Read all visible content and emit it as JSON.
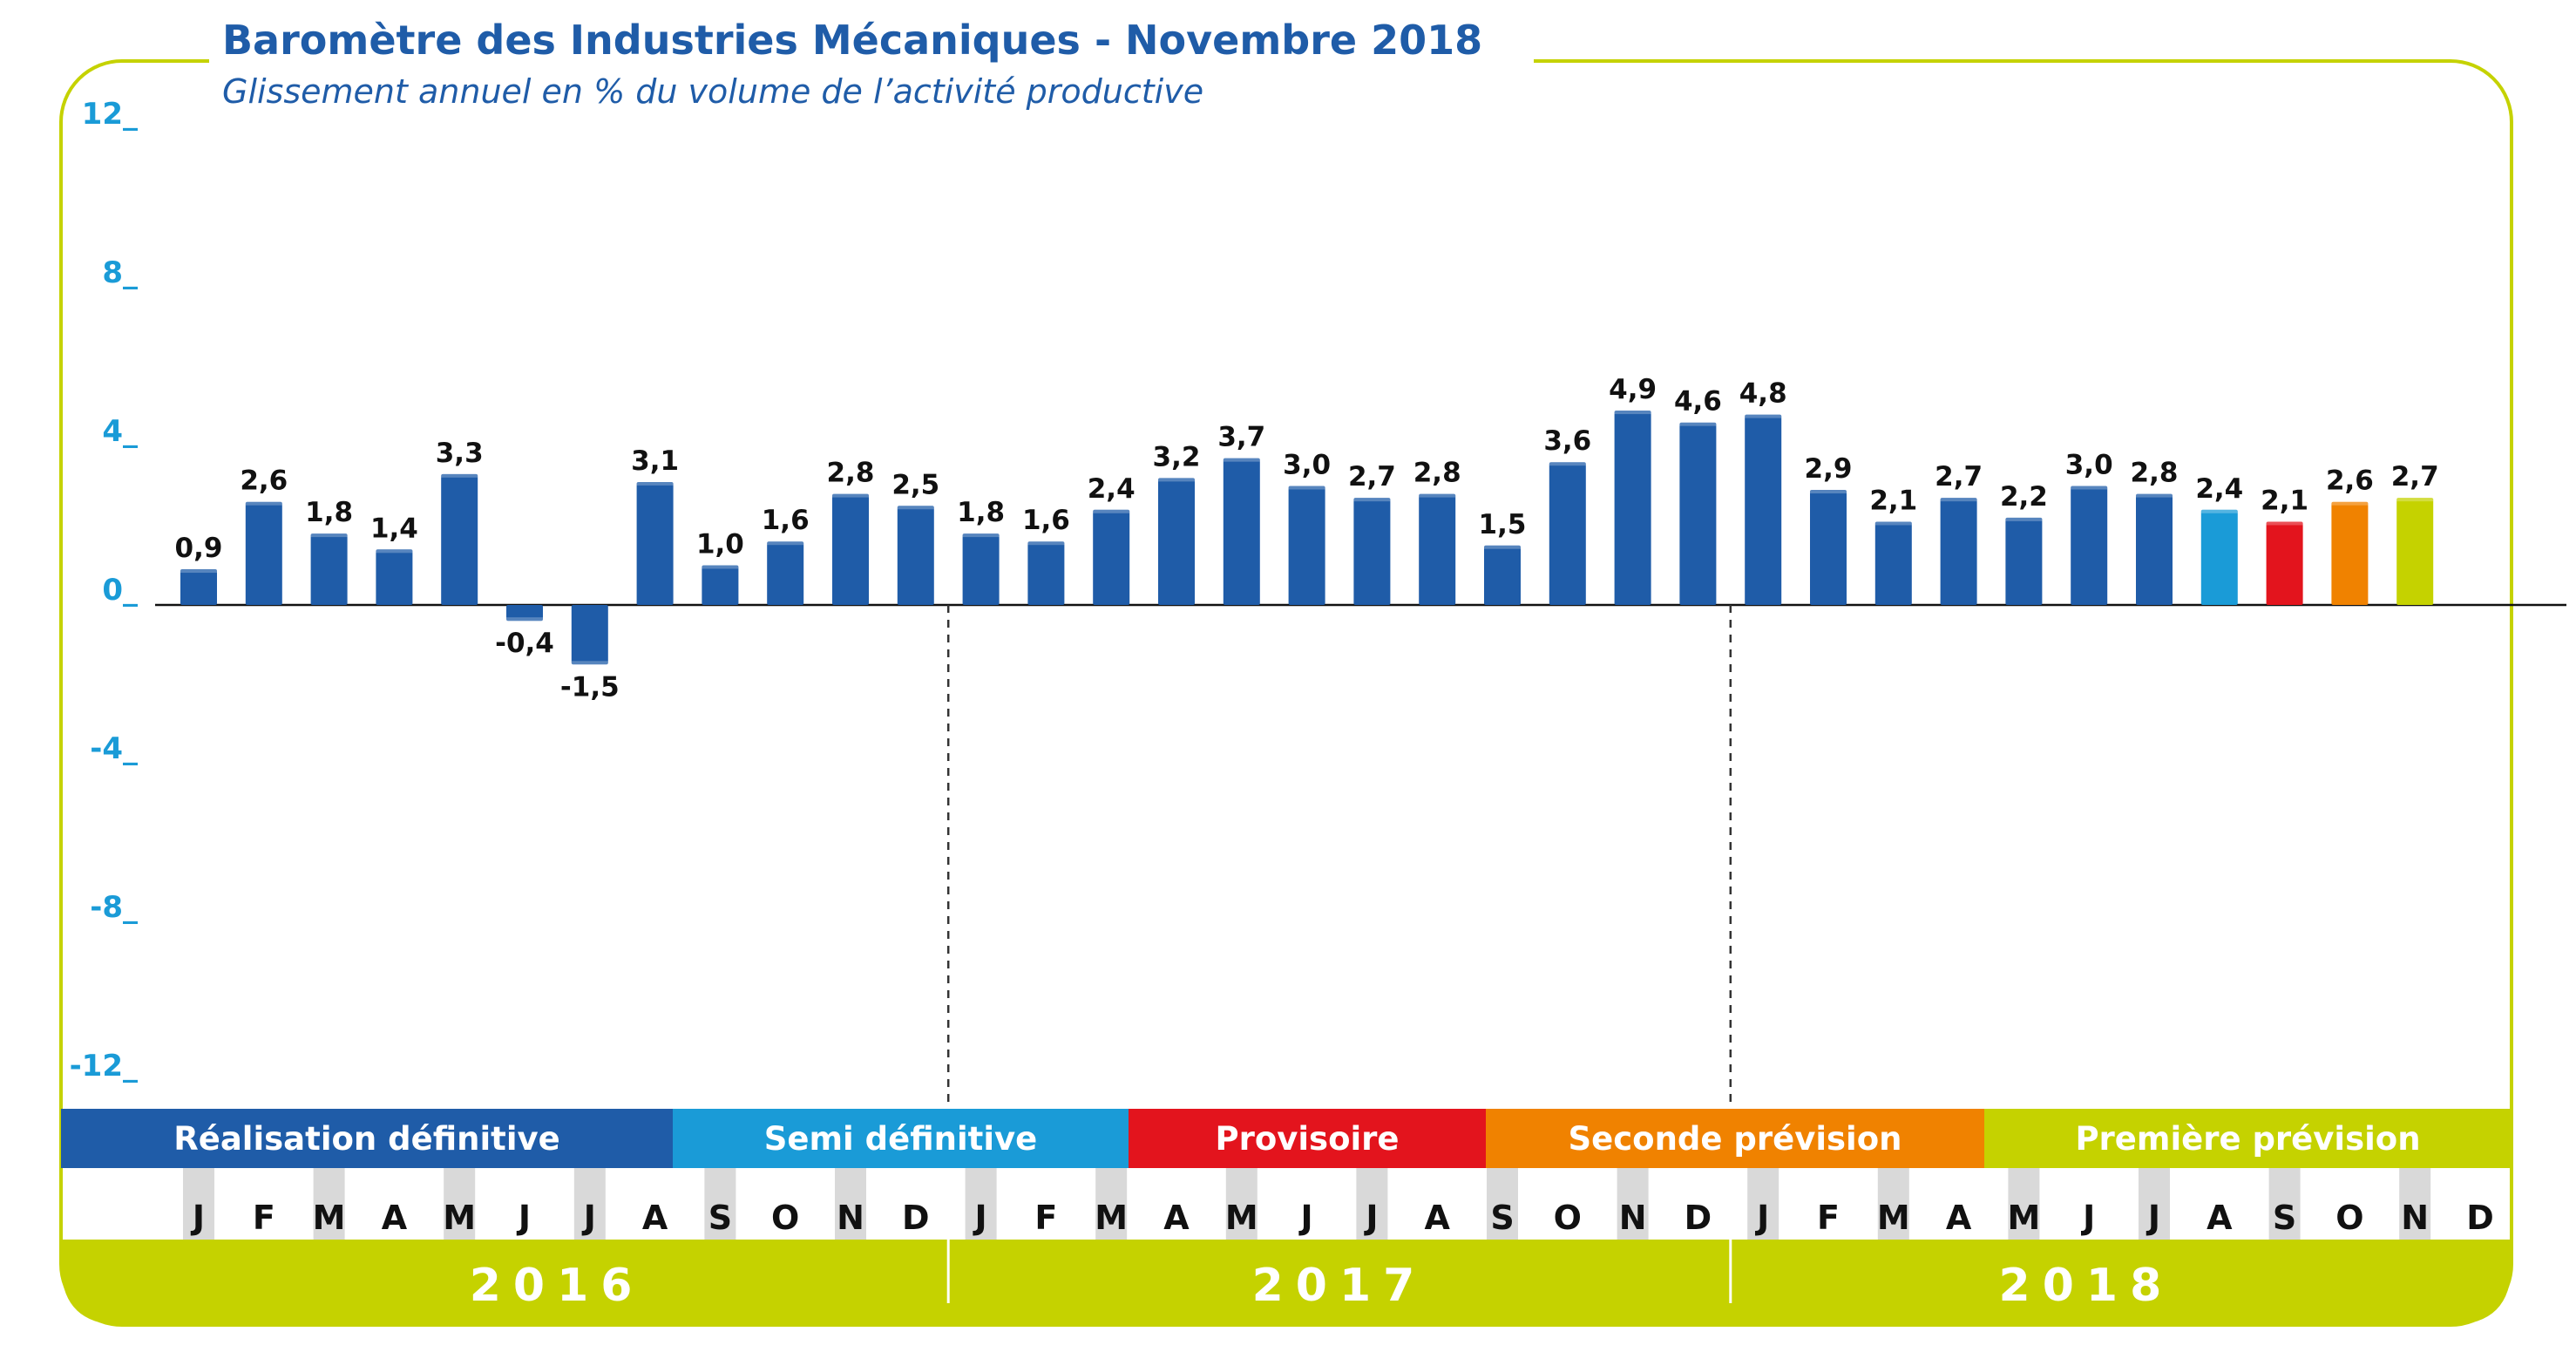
{
  "header": {
    "title": "Baromètre des Industries Mécaniques - Novembre 2018",
    "subtitle": "Glissement annuel en % du volume de l’activité productive"
  },
  "colors": {
    "brand_blue": "#1f5ca8",
    "light_blue": "#1a9bd7",
    "red": "#e3141d",
    "orange": "#f08200",
    "lime": "#c5d200",
    "frame": "#c5d200",
    "month_gray": "#d9d9d9"
  },
  "chart_data": {
    "type": "bar",
    "title": "Baromètre des Industries Mécaniques - Novembre 2018",
    "subtitle": "Glissement annuel en % du volume de l’activité productive",
    "ylim": [
      -12,
      12
    ],
    "yticks": [
      12,
      8,
      4,
      0,
      -4,
      -8,
      -12
    ],
    "ytick_labels": [
      "12_",
      "8_",
      "4_",
      "0_",
      "-4_",
      "-8_",
      "-12_"
    ],
    "grid": false,
    "categories": [
      "J",
      "F",
      "M",
      "A",
      "M",
      "J",
      "J",
      "A",
      "S",
      "O",
      "N",
      "D",
      "J",
      "F",
      "M",
      "A",
      "M",
      "J",
      "J",
      "A",
      "S",
      "O",
      "N",
      "D",
      "J",
      "F",
      "M",
      "A",
      "M",
      "J",
      "J",
      "A",
      "S",
      "O",
      "N",
      "D"
    ],
    "years": [
      "2016",
      "2017",
      "2018"
    ],
    "values": [
      0.9,
      2.6,
      1.8,
      1.4,
      3.3,
      -0.4,
      -1.5,
      3.1,
      1.0,
      1.6,
      2.8,
      2.5,
      1.8,
      1.6,
      2.4,
      3.2,
      3.7,
      3.0,
      2.7,
      2.8,
      1.5,
      3.6,
      4.9,
      4.6,
      4.8,
      2.9,
      2.1,
      2.7,
      2.2,
      3.0,
      2.8,
      2.4,
      2.1,
      2.6,
      2.7,
      null
    ],
    "value_labels": [
      "0,9",
      "2,6",
      "1,8",
      "1,4",
      "3,3",
      "-0,4",
      "-1,5",
      "3,1",
      "1,0",
      "1,6",
      "2,8",
      "2,5",
      "1,8",
      "1,6",
      "2,4",
      "3,2",
      "3,7",
      "3,0",
      "2,7",
      "2,8",
      "1,5",
      "3,6",
      "4,9",
      "4,6",
      "4,8",
      "2,9",
      "2,1",
      "2,7",
      "2,2",
      "3,0",
      "2,8",
      "2,4",
      "2,1",
      "2,6",
      "2,7",
      ""
    ],
    "bar_colors": [
      "#1f5ca8",
      "#1f5ca8",
      "#1f5ca8",
      "#1f5ca8",
      "#1f5ca8",
      "#1f5ca8",
      "#1f5ca8",
      "#1f5ca8",
      "#1f5ca8",
      "#1f5ca8",
      "#1f5ca8",
      "#1f5ca8",
      "#1f5ca8",
      "#1f5ca8",
      "#1f5ca8",
      "#1f5ca8",
      "#1f5ca8",
      "#1f5ca8",
      "#1f5ca8",
      "#1f5ca8",
      "#1f5ca8",
      "#1f5ca8",
      "#1f5ca8",
      "#1f5ca8",
      "#1f5ca8",
      "#1f5ca8",
      "#1f5ca8",
      "#1f5ca8",
      "#1f5ca8",
      "#1f5ca8",
      "#1f5ca8",
      "#1a9bd7",
      "#e3141d",
      "#f08200",
      "#c5d200",
      ""
    ],
    "phases": [
      {
        "label": "Réalisation définitive",
        "color": "#1f5ca8"
      },
      {
        "label": "Semi définitive",
        "color": "#1a9bd7"
      },
      {
        "label": "Provisoire",
        "color": "#e3141d"
      },
      {
        "label": "Seconde prévision",
        "color": "#f08200"
      },
      {
        "label": "Première prévision",
        "color": "#c5d200"
      }
    ]
  }
}
